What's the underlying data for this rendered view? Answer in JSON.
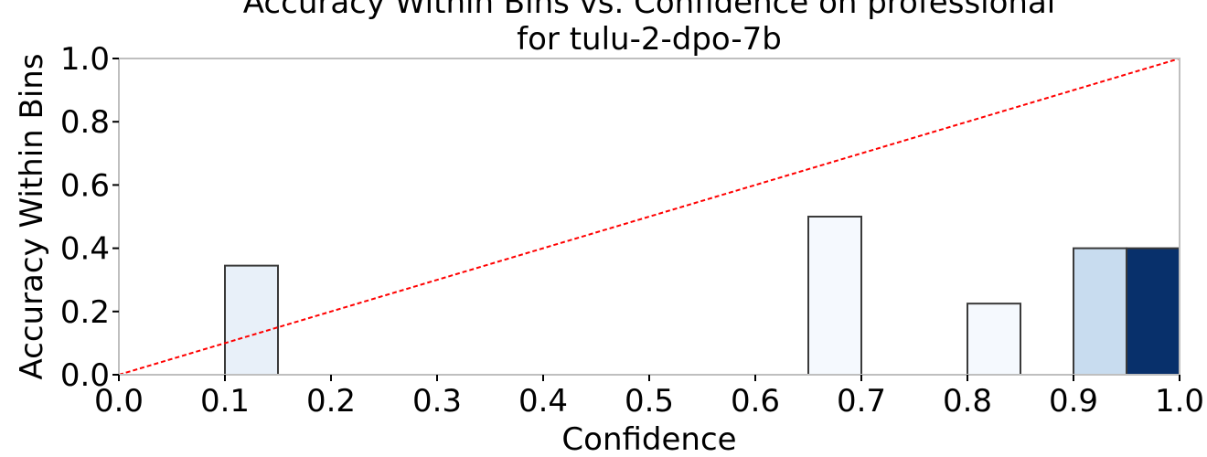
{
  "chart_data": {
    "type": "bar",
    "title_line1": "Accuracy Within Bins vs. Confidence on professional",
    "title_line2": "for tulu-2-dpo-7b",
    "xlabel": "Confidence",
    "ylabel": "Accuracy Within Bins",
    "xlim": [
      0.0,
      1.0
    ],
    "ylim": [
      0.0,
      1.0
    ],
    "x_ticks": [
      "0.0",
      "0.1",
      "0.2",
      "0.3",
      "0.4",
      "0.5",
      "0.6",
      "0.7",
      "0.8",
      "0.9",
      "1.0"
    ],
    "y_ticks": [
      "0.0",
      "0.2",
      "0.4",
      "0.6",
      "0.8",
      "1.0"
    ],
    "bin_width": 0.05,
    "bars": [
      {
        "bin_start": 0.1,
        "accuracy": 0.345,
        "color": "#e8f0f9"
      },
      {
        "bin_start": 0.65,
        "accuracy": 0.5,
        "color": "#f5f9fe"
      },
      {
        "bin_start": 0.8,
        "accuracy": 0.225,
        "color": "#f5f9fe"
      },
      {
        "bin_start": 0.9,
        "accuracy": 0.4,
        "color": "#c8dcef"
      },
      {
        "bin_start": 0.95,
        "accuracy": 0.4,
        "color": "#08306b"
      }
    ],
    "reference_line": {
      "x": [
        0.0,
        1.0
      ],
      "y": [
        0.0,
        1.0
      ],
      "color": "#ff0000",
      "style": "dashed"
    },
    "grid": false
  }
}
